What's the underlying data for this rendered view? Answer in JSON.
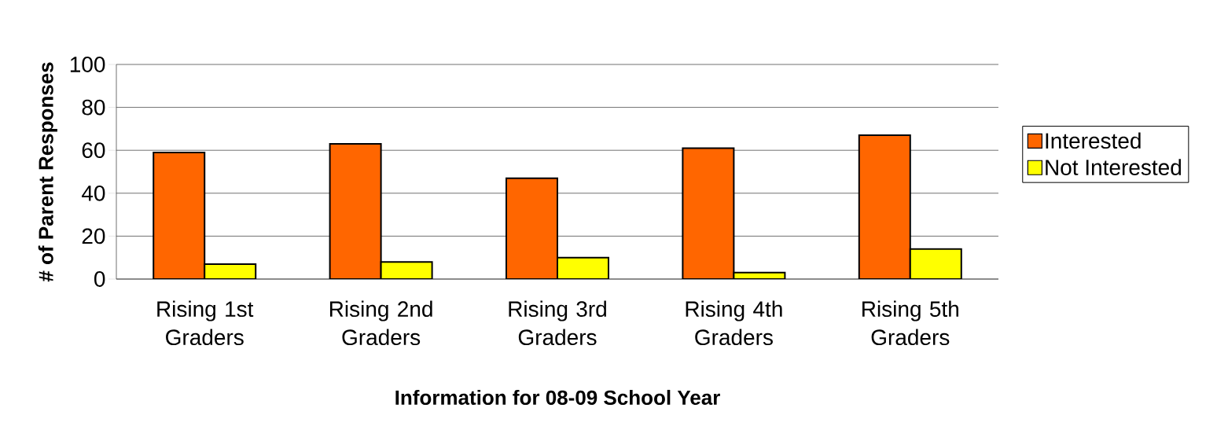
{
  "chart_data": {
    "type": "bar",
    "xlabel": "Information for 08-09 School Year",
    "ylabel": "# of Parent Responses",
    "categories": [
      "Rising 1st Graders",
      "Rising 2nd Graders",
      "Rising 3rd Graders",
      "Rising 4th Graders",
      "Rising 5th Graders"
    ],
    "series": [
      {
        "name": "Interested",
        "color": "#ff6600",
        "values": [
          59,
          63,
          47,
          61,
          67
        ]
      },
      {
        "name": "Not Interested",
        "color": "#ffff00",
        "values": [
          7,
          8,
          10,
          3,
          14
        ]
      }
    ],
    "ylim": [
      0,
      100
    ],
    "yticks": [
      0,
      20,
      40,
      60,
      80,
      100
    ],
    "grid": "y",
    "legend": "right"
  }
}
